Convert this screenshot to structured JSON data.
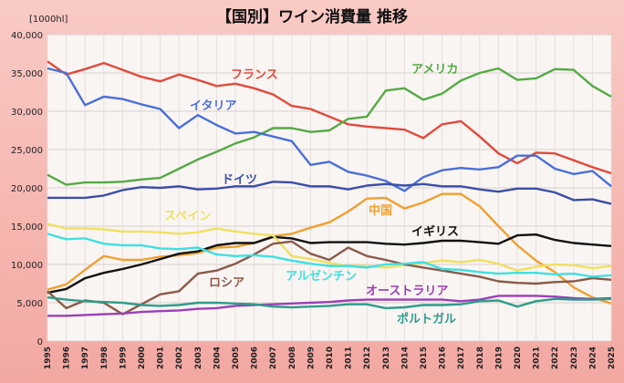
{
  "chart_data": {
    "type": "line",
    "title": "【国別】ワイン消費量 推移",
    "unit": "[1000hl]",
    "xlabel": "",
    "ylabel": "",
    "ylim": [
      0,
      40000
    ],
    "yticks": [
      "0",
      "5,000",
      "10,000",
      "15,000",
      "20,000",
      "25,000",
      "30,000",
      "35,000",
      "40,000"
    ],
    "x": [
      "1995",
      "1996",
      "1997",
      "1998",
      "1999",
      "2000",
      "2001",
      "2002",
      "2003",
      "2004",
      "2005",
      "2006",
      "2007",
      "2008",
      "2009",
      "2010",
      "2011",
      "2012",
      "2013",
      "2014",
      "2015",
      "2016",
      "2017",
      "2018",
      "2019",
      "2020",
      "2021",
      "2022",
      "2023",
      "2024",
      "2025"
    ],
    "grid": true,
    "legend": "inline labels",
    "series": [
      {
        "name": "フランス",
        "color": "#e04b3c",
        "values": [
          36500,
          34800,
          35500,
          36300,
          35400,
          34500,
          33900,
          34800,
          34100,
          33300,
          33600,
          33000,
          32200,
          30700,
          30300,
          29300,
          28300,
          28000,
          27800,
          27600,
          26500,
          28300,
          28700,
          26700,
          24500,
          23200,
          24600,
          24500,
          23600,
          22700,
          21900
        ]
      },
      {
        "name": "アメリカ",
        "color": "#55aa44",
        "values": [
          21700,
          20400,
          20700,
          20700,
          20800,
          21100,
          21300,
          22500,
          23700,
          24700,
          25800,
          26600,
          27800,
          27800,
          27300,
          27500,
          29000,
          29300,
          32700,
          33000,
          31500,
          32300,
          34000,
          35000,
          35600,
          34100,
          34300,
          35500,
          35400,
          33300,
          31900
        ]
      },
      {
        "name": "イタリア",
        "color": "#4a6fd8",
        "values": [
          35600,
          35000,
          30800,
          31900,
          31600,
          30900,
          30300,
          27800,
          29500,
          28200,
          27100,
          27300,
          26700,
          26100,
          23000,
          23400,
          22100,
          21600,
          20900,
          19600,
          21400,
          22300,
          22600,
          22400,
          22700,
          24200,
          24200,
          22500,
          21800,
          22200,
          20200
        ]
      },
      {
        "name": "ドイツ",
        "color": "#3a4ea8",
        "values": [
          18700,
          18700,
          18700,
          19000,
          19700,
          20100,
          20000,
          20200,
          19800,
          19900,
          20200,
          20200,
          20800,
          20700,
          20200,
          20200,
          19800,
          20300,
          20500,
          20300,
          20500,
          20200,
          20200,
          19800,
          19500,
          19900,
          19900,
          19400,
          18400,
          18500,
          17900
        ]
      },
      {
        "name": "中国",
        "color": "#f0a030",
        "values": [
          6700,
          7400,
          9300,
          11100,
          10600,
          10600,
          11000,
          11200,
          11500,
          12200,
          12300,
          12800,
          13700,
          14000,
          14800,
          15500,
          16900,
          18600,
          18700,
          17300,
          18100,
          19200,
          19200,
          17600,
          15000,
          12500,
          10500,
          9000,
          7000,
          5700,
          4900
        ]
      },
      {
        "name": "イギリス",
        "color": "#111111",
        "values": [
          6300,
          6800,
          8200,
          8900,
          9400,
          10000,
          10700,
          11400,
          11700,
          12500,
          12800,
          12800,
          13600,
          13400,
          12800,
          12900,
          12900,
          12900,
          12700,
          12600,
          12800,
          13100,
          13100,
          12900,
          12700,
          13800,
          13900,
          13200,
          12800,
          12600,
          12400
        ]
      },
      {
        "name": "スペイン",
        "color": "#f0e060",
        "values": [
          15300,
          14700,
          14700,
          14600,
          14300,
          14300,
          14200,
          14000,
          14200,
          14700,
          14300,
          14000,
          13800,
          11100,
          10700,
          10200,
          9800,
          9800,
          9600,
          9900,
          10200,
          10500,
          10300,
          10600,
          10100,
          9200,
          9700,
          10000,
          9900,
          9500,
          9800
        ]
      },
      {
        "name": "ロシア",
        "color": "#8b5a4a",
        "values": [
          6500,
          4300,
          5300,
          5000,
          3500,
          4800,
          6100,
          6500,
          8800,
          9200,
          10100,
          11300,
          12700,
          13000,
          11400,
          10600,
          12200,
          11100,
          10600,
          10000,
          9600,
          9200,
          8800,
          8400,
          7800,
          7600,
          7500,
          7700,
          7800,
          8200,
          8000
        ]
      },
      {
        "name": "アルゼンチン",
        "color": "#40e0e0",
        "values": [
          14000,
          13300,
          13400,
          12700,
          12500,
          12500,
          12100,
          12000,
          12200,
          11300,
          11100,
          11200,
          11000,
          10500,
          10100,
          9800,
          9800,
          9600,
          10000,
          10100,
          10300,
          9400,
          9300,
          9000,
          8800,
          8900,
          8900,
          8700,
          8800,
          8400,
          8600
        ]
      },
      {
        "name": "オーストラリア",
        "color": "#9c3fb8",
        "values": [
          3300,
          3300,
          3400,
          3500,
          3600,
          3800,
          3900,
          4000,
          4200,
          4300,
          4600,
          4700,
          4800,
          4900,
          5000,
          5100,
          5300,
          5400,
          5400,
          5400,
          5400,
          5400,
          5200,
          5400,
          5900,
          5900,
          5900,
          5800,
          5600,
          5500,
          5600
        ]
      },
      {
        "name": "ポルトガル",
        "color": "#2f9c8a",
        "values": [
          5700,
          5400,
          5200,
          5100,
          5000,
          4700,
          4600,
          4700,
          5000,
          5000,
          4900,
          4800,
          4500,
          4400,
          4500,
          4600,
          4800,
          4800,
          4300,
          4400,
          4700,
          4700,
          4800,
          5200,
          5300,
          4500,
          5200,
          5500,
          5400,
          5400,
          5500
        ]
      }
    ]
  }
}
